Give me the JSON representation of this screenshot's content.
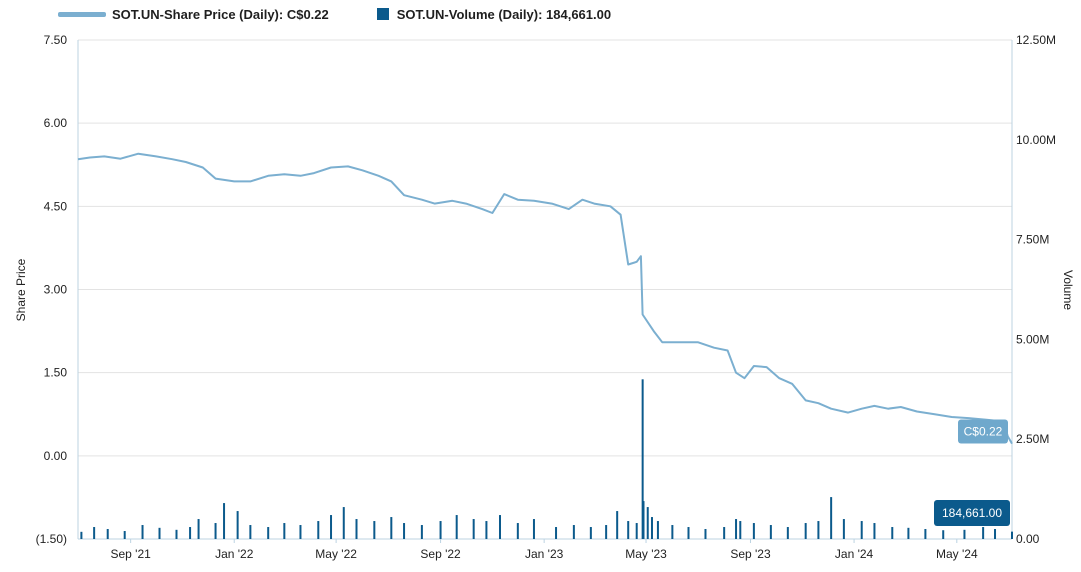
{
  "legend": {
    "price_label": "SOT.UN-Share Price (Daily): C$0.22",
    "volume_label": "SOT.UN-Volume (Daily): 184,661.00"
  },
  "colors": {
    "price": "#7bafd0",
    "volume": "#0b5a8c",
    "price_callout": "#6fa8cc",
    "volume_callout": "#0b5a8c",
    "grid": "#e3e3e3",
    "axis": "#bcd3e2"
  },
  "chart_data": {
    "type": "line",
    "title": "",
    "xlabel": "",
    "ylabel": "Share Price",
    "y2label": "Volume",
    "ylim": [
      -1.5,
      7.5
    ],
    "y2lim": [
      0,
      12500000
    ],
    "x_range": [
      "2021-07-01",
      "2024-07-05"
    ],
    "x_ticks": [
      {
        "date": "2021-09-01",
        "label": "Sep '21"
      },
      {
        "date": "2022-01-01",
        "label": "Jan '22"
      },
      {
        "date": "2022-05-01",
        "label": "May '22"
      },
      {
        "date": "2022-09-01",
        "label": "Sep '22"
      },
      {
        "date": "2023-01-01",
        "label": "Jan '23"
      },
      {
        "date": "2023-05-01",
        "label": "May '23"
      },
      {
        "date": "2023-09-01",
        "label": "Sep '23"
      },
      {
        "date": "2024-01-01",
        "label": "Jan '24"
      },
      {
        "date": "2024-05-01",
        "label": "May '24"
      }
    ],
    "y_ticks": [
      {
        "value": 7.5,
        "label": "7.50"
      },
      {
        "value": 6.0,
        "label": "6.00"
      },
      {
        "value": 4.5,
        "label": "4.50"
      },
      {
        "value": 3.0,
        "label": "3.00"
      },
      {
        "value": 1.5,
        "label": "1.50"
      },
      {
        "value": 0.0,
        "label": "0.00"
      },
      {
        "value": -1.5,
        "label": "(1.50)"
      }
    ],
    "y2_ticks": [
      {
        "value": 12500000,
        "label": "12.50M"
      },
      {
        "value": 10000000,
        "label": "10.00M"
      },
      {
        "value": 7500000,
        "label": "7.50M"
      },
      {
        "value": 5000000,
        "label": "5.00M"
      },
      {
        "value": 2500000,
        "label": "2.50M"
      },
      {
        "value": 0,
        "label": "0.00"
      }
    ],
    "series": [
      {
        "name": "SOT.UN-Share Price (Daily)",
        "axis": "left",
        "points": [
          [
            "2021-07-01",
            5.35
          ],
          [
            "2021-07-15",
            5.38
          ],
          [
            "2021-08-01",
            5.4
          ],
          [
            "2021-08-20",
            5.36
          ],
          [
            "2021-09-10",
            5.45
          ],
          [
            "2021-10-01",
            5.4
          ],
          [
            "2021-10-20",
            5.35
          ],
          [
            "2021-11-05",
            5.3
          ],
          [
            "2021-11-25",
            5.2
          ],
          [
            "2021-12-10",
            5.0
          ],
          [
            "2022-01-01",
            4.95
          ],
          [
            "2022-01-20",
            4.95
          ],
          [
            "2022-02-10",
            5.05
          ],
          [
            "2022-03-01",
            5.08
          ],
          [
            "2022-03-20",
            5.05
          ],
          [
            "2022-04-05",
            5.1
          ],
          [
            "2022-04-25",
            5.2
          ],
          [
            "2022-05-15",
            5.22
          ],
          [
            "2022-06-01",
            5.15
          ],
          [
            "2022-06-20",
            5.05
          ],
          [
            "2022-07-05",
            4.95
          ],
          [
            "2022-07-20",
            4.7
          ],
          [
            "2022-08-10",
            4.62
          ],
          [
            "2022-08-25",
            4.55
          ],
          [
            "2022-09-15",
            4.6
          ],
          [
            "2022-10-01",
            4.55
          ],
          [
            "2022-10-20",
            4.45
          ],
          [
            "2022-11-01",
            4.38
          ],
          [
            "2022-11-15",
            4.72
          ],
          [
            "2022-12-01",
            4.62
          ],
          [
            "2022-12-20",
            4.6
          ],
          [
            "2023-01-10",
            4.55
          ],
          [
            "2023-01-30",
            4.45
          ],
          [
            "2023-02-15",
            4.62
          ],
          [
            "2023-03-01",
            4.55
          ],
          [
            "2023-03-20",
            4.5
          ],
          [
            "2023-04-01",
            4.35
          ],
          [
            "2023-04-10",
            3.45
          ],
          [
            "2023-04-20",
            3.5
          ],
          [
            "2023-04-25",
            3.6
          ],
          [
            "2023-04-27",
            2.55
          ],
          [
            "2023-05-10",
            2.25
          ],
          [
            "2023-05-20",
            2.05
          ],
          [
            "2023-06-10",
            2.05
          ],
          [
            "2023-07-01",
            2.05
          ],
          [
            "2023-07-20",
            1.95
          ],
          [
            "2023-08-05",
            1.9
          ],
          [
            "2023-08-15",
            1.5
          ],
          [
            "2023-08-25",
            1.4
          ],
          [
            "2023-09-05",
            1.62
          ],
          [
            "2023-09-20",
            1.6
          ],
          [
            "2023-10-05",
            1.4
          ],
          [
            "2023-10-20",
            1.3
          ],
          [
            "2023-11-05",
            1.0
          ],
          [
            "2023-11-20",
            0.95
          ],
          [
            "2023-12-05",
            0.85
          ],
          [
            "2023-12-25",
            0.78
          ],
          [
            "2024-01-10",
            0.85
          ],
          [
            "2024-01-25",
            0.9
          ],
          [
            "2024-02-10",
            0.85
          ],
          [
            "2024-02-25",
            0.88
          ],
          [
            "2024-03-15",
            0.8
          ],
          [
            "2024-04-05",
            0.75
          ],
          [
            "2024-04-25",
            0.7
          ],
          [
            "2024-05-15",
            0.68
          ],
          [
            "2024-06-05",
            0.65
          ],
          [
            "2024-06-25",
            0.62
          ],
          [
            "2024-06-30",
            0.35
          ],
          [
            "2024-07-05",
            0.22
          ]
        ]
      },
      {
        "name": "SOT.UN-Volume (Daily)",
        "axis": "right",
        "points": [
          [
            "2021-07-05",
            180000
          ],
          [
            "2021-07-20",
            300000
          ],
          [
            "2021-08-05",
            250000
          ],
          [
            "2021-08-25",
            200000
          ],
          [
            "2021-09-15",
            350000
          ],
          [
            "2021-10-05",
            280000
          ],
          [
            "2021-10-25",
            230000
          ],
          [
            "2021-11-10",
            300000
          ],
          [
            "2021-11-20",
            500000
          ],
          [
            "2021-12-10",
            400000
          ],
          [
            "2021-12-20",
            900000
          ],
          [
            "2022-01-05",
            700000
          ],
          [
            "2022-01-20",
            350000
          ],
          [
            "2022-02-10",
            300000
          ],
          [
            "2022-03-01",
            400000
          ],
          [
            "2022-03-20",
            350000
          ],
          [
            "2022-04-10",
            450000
          ],
          [
            "2022-04-25",
            600000
          ],
          [
            "2022-05-10",
            800000
          ],
          [
            "2022-05-25",
            500000
          ],
          [
            "2022-06-15",
            450000
          ],
          [
            "2022-07-05",
            550000
          ],
          [
            "2022-07-20",
            400000
          ],
          [
            "2022-08-10",
            350000
          ],
          [
            "2022-09-01",
            450000
          ],
          [
            "2022-09-20",
            600000
          ],
          [
            "2022-10-10",
            500000
          ],
          [
            "2022-10-25",
            450000
          ],
          [
            "2022-11-10",
            600000
          ],
          [
            "2022-12-01",
            400000
          ],
          [
            "2022-12-20",
            500000
          ],
          [
            "2023-01-15",
            300000
          ],
          [
            "2023-02-05",
            350000
          ],
          [
            "2023-02-25",
            300000
          ],
          [
            "2023-03-15",
            350000
          ],
          [
            "2023-03-28",
            700000
          ],
          [
            "2023-04-10",
            450000
          ],
          [
            "2023-04-20",
            400000
          ],
          [
            "2023-04-27",
            4000000
          ],
          [
            "2023-04-28",
            950000
          ],
          [
            "2023-05-03",
            800000
          ],
          [
            "2023-05-08",
            550000
          ],
          [
            "2023-05-15",
            450000
          ],
          [
            "2023-06-01",
            350000
          ],
          [
            "2023-06-20",
            300000
          ],
          [
            "2023-07-10",
            250000
          ],
          [
            "2023-08-01",
            300000
          ],
          [
            "2023-08-15",
            500000
          ],
          [
            "2023-08-20",
            450000
          ],
          [
            "2023-09-05",
            400000
          ],
          [
            "2023-09-25",
            350000
          ],
          [
            "2023-10-15",
            300000
          ],
          [
            "2023-11-05",
            400000
          ],
          [
            "2023-11-20",
            450000
          ],
          [
            "2023-12-05",
            1050000
          ],
          [
            "2023-12-20",
            500000
          ],
          [
            "2024-01-10",
            450000
          ],
          [
            "2024-01-25",
            400000
          ],
          [
            "2024-02-15",
            300000
          ],
          [
            "2024-03-05",
            280000
          ],
          [
            "2024-03-25",
            250000
          ],
          [
            "2024-04-15",
            220000
          ],
          [
            "2024-05-10",
            230000
          ],
          [
            "2024-06-01",
            300000
          ],
          [
            "2024-06-15",
            250000
          ],
          [
            "2024-07-05",
            184661
          ]
        ]
      }
    ],
    "annotations": [
      {
        "series": "SOT.UN-Share Price (Daily)",
        "label": "C$0.22",
        "value": 0.22
      },
      {
        "series": "SOT.UN-Volume (Daily)",
        "label": "184,661.00",
        "value": 184661
      }
    ]
  }
}
